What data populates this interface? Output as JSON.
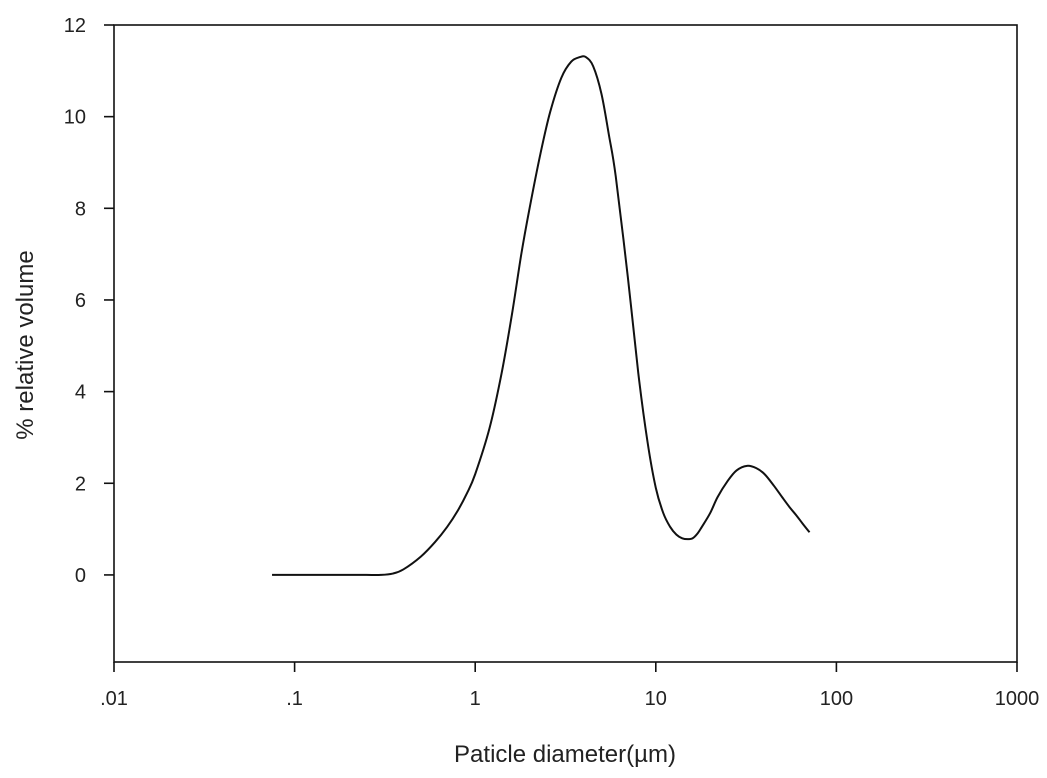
{
  "chart_data": {
    "type": "line",
    "title": "",
    "xlabel": "Paticle diameter(µm)",
    "ylabel": "% relative volume",
    "x_scale": "log",
    "xlim": [
      0.01,
      1000
    ],
    "ylim": [
      -1.9,
      12
    ],
    "x_ticks": [
      0.01,
      0.1,
      1,
      10,
      100,
      1000
    ],
    "x_tick_labels": [
      ".01",
      ".1",
      "1",
      "10",
      "100",
      "1000"
    ],
    "y_ticks": [
      0,
      2,
      4,
      6,
      8,
      10,
      12
    ],
    "y_tick_labels": [
      "0",
      "2",
      "4",
      "6",
      "8",
      "10",
      "12"
    ],
    "grid": false,
    "legend": "none",
    "line_color": "#111111",
    "series": [
      {
        "x": [
          0.075,
          0.1,
          0.15,
          0.2,
          0.25,
          0.3,
          0.35,
          0.4,
          0.5,
          0.6,
          0.7,
          0.8,
          0.9,
          1.0,
          1.2,
          1.4,
          1.6,
          1.8,
          2.0,
          2.3,
          2.6,
          3.0,
          3.4,
          3.8,
          4.1,
          4.5,
          5.0,
          5.5,
          6.0,
          7.0,
          8.0,
          9.0,
          10.0,
          11.0,
          12.0,
          13.0,
          14.0,
          15.0,
          16.0,
          17.0,
          18.0,
          20.0,
          22.0,
          25.0,
          28.0,
          32.0,
          36.0,
          40.0,
          45.0,
          50.0,
          55.0,
          60.0,
          65.0,
          71.0
        ],
        "y": [
          0.0,
          0.0,
          0.0,
          0.0,
          0.0,
          0.0,
          0.03,
          0.12,
          0.4,
          0.72,
          1.05,
          1.4,
          1.78,
          2.2,
          3.2,
          4.4,
          5.7,
          7.0,
          8.0,
          9.2,
          10.1,
          10.85,
          11.2,
          11.3,
          11.3,
          11.1,
          10.5,
          9.6,
          8.7,
          6.5,
          4.4,
          2.9,
          1.9,
          1.35,
          1.05,
          0.88,
          0.8,
          0.78,
          0.8,
          0.9,
          1.05,
          1.35,
          1.7,
          2.05,
          2.28,
          2.38,
          2.33,
          2.2,
          1.95,
          1.7,
          1.48,
          1.3,
          1.12,
          0.93
        ]
      }
    ]
  }
}
